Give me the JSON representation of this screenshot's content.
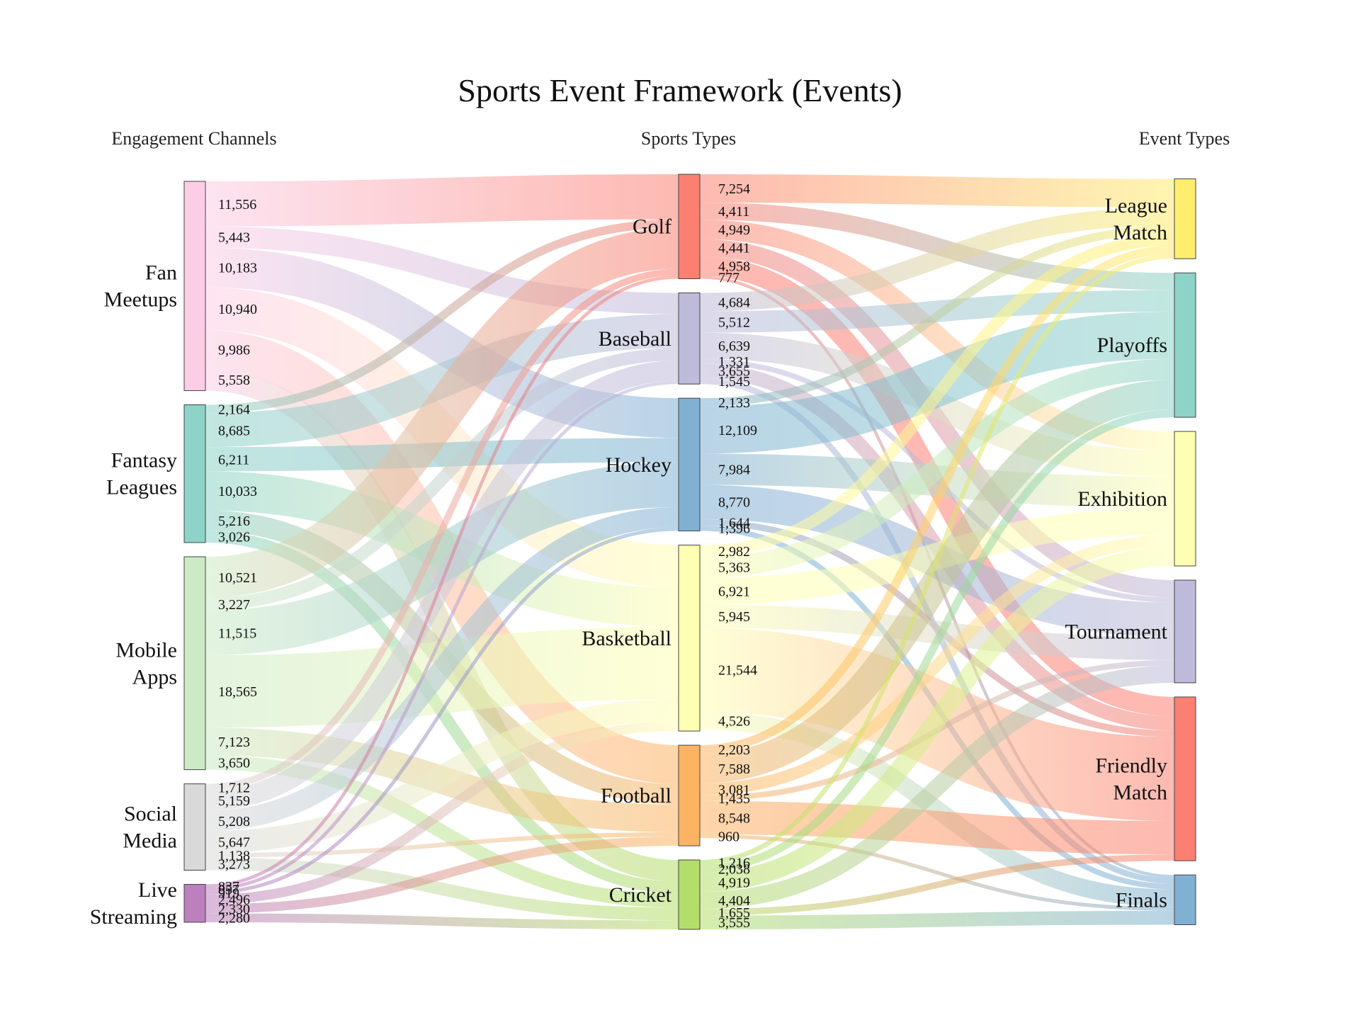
{
  "chart_data": {
    "type": "sankey",
    "title": "Sports Event Framework (Events)",
    "columns": [
      "Engagement Channels",
      "Sports Types",
      "Event Types"
    ],
    "nodes": {
      "sources": [
        {
          "id": "fan",
          "label": "Fan\nMeetups",
          "color": "#fccde5"
        },
        {
          "id": "fantasy",
          "label": "Fantasy\nLeagues",
          "color": "#8dd3c7"
        },
        {
          "id": "mobile",
          "label": "Mobile\nApps",
          "color": "#ccebc5"
        },
        {
          "id": "social",
          "label": "Social\nMedia",
          "color": "#d9d9d9"
        },
        {
          "id": "live",
          "label": "Live\nStreaming",
          "color": "#bc80bd"
        }
      ],
      "sports": [
        {
          "id": "golf",
          "label": "Golf",
          "color": "#fb8072"
        },
        {
          "id": "baseball",
          "label": "Baseball",
          "color": "#bebada"
        },
        {
          "id": "hockey",
          "label": "Hockey",
          "color": "#80b1d3"
        },
        {
          "id": "basketball",
          "label": "Basketball",
          "color": "#ffffb3"
        },
        {
          "id": "football",
          "label": "Football",
          "color": "#fdb462"
        },
        {
          "id": "cricket",
          "label": "Cricket",
          "color": "#b3de69"
        }
      ],
      "events": [
        {
          "id": "league",
          "label": "League\nMatch",
          "color": "#ffed6f"
        },
        {
          "id": "playoffs",
          "label": "Playoffs",
          "color": "#8dd3c7"
        },
        {
          "id": "exhibition",
          "label": "Exhibition",
          "color": "#ffffb3"
        },
        {
          "id": "tournament",
          "label": "Tournament",
          "color": "#bebada"
        },
        {
          "id": "friendly",
          "label": "Friendly\nMatch",
          "color": "#fb8072"
        },
        {
          "id": "finals",
          "label": "Finals",
          "color": "#80b1d3"
        }
      ]
    },
    "links_stage1": [
      {
        "source": "fan",
        "target": "golf",
        "value": 11556
      },
      {
        "source": "fan",
        "target": "baseball",
        "value": 5443
      },
      {
        "source": "fan",
        "target": "hockey",
        "value": 10183
      },
      {
        "source": "fan",
        "target": "basketball",
        "value": 10940
      },
      {
        "source": "fan",
        "target": "football",
        "value": 9986
      },
      {
        "source": "fan",
        "target": "cricket",
        "value": 5558
      },
      {
        "source": "fantasy",
        "target": "golf",
        "value": 2164
      },
      {
        "source": "fantasy",
        "target": "baseball",
        "value": 8685
      },
      {
        "source": "fantasy",
        "target": "hockey",
        "value": 6211
      },
      {
        "source": "fantasy",
        "target": "basketball",
        "value": 10033
      },
      {
        "source": "fantasy",
        "target": "football",
        "value": 5216
      },
      {
        "source": "fantasy",
        "target": "cricket",
        "value": 3026
      },
      {
        "source": "mobile",
        "target": "golf",
        "value": 10521
      },
      {
        "source": "mobile",
        "target": "baseball",
        "value": 3227
      },
      {
        "source": "mobile",
        "target": "hockey",
        "value": 11515
      },
      {
        "source": "mobile",
        "target": "basketball",
        "value": 18565
      },
      {
        "source": "mobile",
        "target": "football",
        "value": 7123
      },
      {
        "source": "mobile",
        "target": "cricket",
        "value": 3650
      },
      {
        "source": "social",
        "target": "golf",
        "value": 1712
      },
      {
        "source": "social",
        "target": "baseball",
        "value": 5159
      },
      {
        "source": "social",
        "target": "hockey",
        "value": 5208
      },
      {
        "source": "social",
        "target": "basketball",
        "value": 5647
      },
      {
        "source": "social",
        "target": "football",
        "value": 1138
      },
      {
        "source": "social",
        "target": "cricket",
        "value": 3273
      },
      {
        "source": "live",
        "target": "golf",
        "value": 837
      },
      {
        "source": "live",
        "target": "baseball",
        "value": 857
      },
      {
        "source": "live",
        "target": "hockey",
        "value": 919
      },
      {
        "source": "live",
        "target": "basketball",
        "value": 2496
      },
      {
        "source": "live",
        "target": "football",
        "value": 2330
      },
      {
        "source": "live",
        "target": "cricket",
        "value": 2280
      }
    ],
    "links_stage2": [
      {
        "source": "golf",
        "target": "league",
        "value": 7254
      },
      {
        "source": "golf",
        "target": "playoffs",
        "value": 4411
      },
      {
        "source": "golf",
        "target": "exhibition",
        "value": 4949
      },
      {
        "source": "golf",
        "target": "tournament",
        "value": 4441
      },
      {
        "source": "golf",
        "target": "friendly",
        "value": 4958
      },
      {
        "source": "golf",
        "target": "finals",
        "value": 777
      },
      {
        "source": "baseball",
        "target": "league",
        "value": 4684
      },
      {
        "source": "baseball",
        "target": "playoffs",
        "value": 5512
      },
      {
        "source": "baseball",
        "target": "exhibition",
        "value": 6639
      },
      {
        "source": "baseball",
        "target": "tournament",
        "value": 1331
      },
      {
        "source": "baseball",
        "target": "friendly",
        "value": 3655
      },
      {
        "source": "baseball",
        "target": "finals",
        "value": 1545
      },
      {
        "source": "hockey",
        "target": "league",
        "value": 2133
      },
      {
        "source": "hockey",
        "target": "playoffs",
        "value": 12109
      },
      {
        "source": "hockey",
        "target": "exhibition",
        "value": 7984
      },
      {
        "source": "hockey",
        "target": "tournament",
        "value": 8770
      },
      {
        "source": "hockey",
        "target": "friendly",
        "value": 1644
      },
      {
        "source": "hockey",
        "target": "finals",
        "value": 1396
      },
      {
        "source": "basketball",
        "target": "league",
        "value": 2982
      },
      {
        "source": "basketball",
        "target": "playoffs",
        "value": 5363
      },
      {
        "source": "basketball",
        "target": "exhibition",
        "value": 6921
      },
      {
        "source": "basketball",
        "target": "tournament",
        "value": 5945
      },
      {
        "source": "basketball",
        "target": "friendly",
        "value": 21544
      },
      {
        "source": "basketball",
        "target": "finals",
        "value": 4526
      },
      {
        "source": "football",
        "target": "league",
        "value": 2203
      },
      {
        "source": "football",
        "target": "playoffs",
        "value": 7588
      },
      {
        "source": "football",
        "target": "exhibition",
        "value": 3081
      },
      {
        "source": "football",
        "target": "tournament",
        "value": 1435
      },
      {
        "source": "football",
        "target": "friendly",
        "value": 8548
      },
      {
        "source": "football",
        "target": "finals",
        "value": 960
      },
      {
        "source": "cricket",
        "target": "league",
        "value": 1216
      },
      {
        "source": "cricket",
        "target": "playoffs",
        "value": 2038
      },
      {
        "source": "cricket",
        "target": "exhibition",
        "value": 4919
      },
      {
        "source": "cricket",
        "target": "tournament",
        "value": 4404
      },
      {
        "source": "cricket",
        "target": "friendly",
        "value": 1655
      },
      {
        "source": "cricket",
        "target": "finals",
        "value": 3555
      }
    ]
  }
}
